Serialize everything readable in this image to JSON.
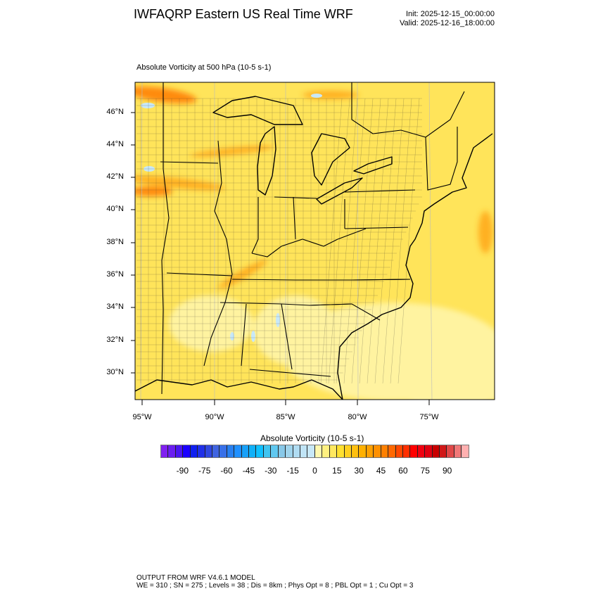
{
  "header": {
    "title": "IWFAQRP Eastern US Real Time WRF",
    "init": "Init: 2025-12-15_00:00:00",
    "valid": "Valid: 2025-12-16_18:00:00"
  },
  "plot": {
    "subtitle": "Absolute Vorticity at 500 hPa   (10-5 s-1)",
    "lat_labels": [
      "46°N",
      "44°N",
      "42°N",
      "40°N",
      "38°N",
      "36°N",
      "34°N",
      "32°N",
      "30°N"
    ],
    "lon_labels": [
      "95°W",
      "90°W",
      "85°W",
      "80°W",
      "75°W"
    ],
    "field_colors": {
      "base": "#ffe45a",
      "light": "#fff3a0",
      "orange": "#ffb020",
      "deep_orange": "#ff8a10",
      "water": "#c8e8f8"
    }
  },
  "colorbar": {
    "title": "Absolute Vorticity  (10-5 s-1)",
    "labels": [
      "-90",
      "-75",
      "-60",
      "-45",
      "-30",
      "-15",
      "0",
      "15",
      "30",
      "45",
      "60",
      "75",
      "90"
    ],
    "colors": [
      "#8020f0",
      "#6a1ef0",
      "#4a16f0",
      "#1a00ff",
      "#1020f0",
      "#2030e8",
      "#3048e0",
      "#4064e0",
      "#3870e8",
      "#2880f0",
      "#2090ff",
      "#18a0f8",
      "#10b0f8",
      "#10c0ff",
      "#40c4f0",
      "#60c8f0",
      "#88c8e8",
      "#a0d4ec",
      "#b0dcf2",
      "#c0e4f6",
      "#c8e8f8",
      "#fff8b0",
      "#fff080",
      "#ffe860",
      "#ffe030",
      "#ffd020",
      "#ffc010",
      "#ffb000",
      "#ffa000",
      "#ff9000",
      "#ff8000",
      "#ff6800",
      "#ff4800",
      "#ff3000",
      "#ff0000",
      "#f00010",
      "#e00010",
      "#c80000",
      "#d01818",
      "#e04848",
      "#f07878",
      "#ffb0b0"
    ]
  },
  "footer": {
    "line1": "OUTPUT FROM WRF V4.6.1 MODEL",
    "line2": "WE = 310 ; SN = 275 ; Levels = 38 ; Dis = 8km ; Phys Opt = 8 ; PBL Opt = 1 ; Cu Opt = 3"
  }
}
